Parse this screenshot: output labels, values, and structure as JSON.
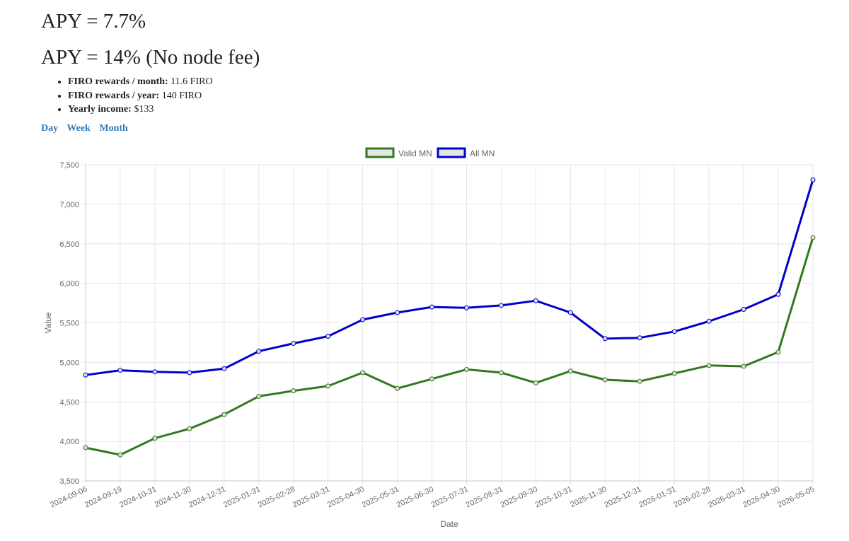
{
  "header": {
    "apy_primary": "APY = 7.7%",
    "apy_no_fee": "APY = 14% (No node fee)"
  },
  "stats": [
    {
      "label": "FIRO rewards / month:",
      "value": "11.6 FIRO"
    },
    {
      "label": "FIRO rewards / year:",
      "value": "140 FIRO"
    },
    {
      "label": "Yearly income:",
      "value": "$133"
    }
  ],
  "ranges": [
    "Day",
    "Week",
    "Month"
  ],
  "chart_data": {
    "type": "line",
    "xlabel": "Date",
    "ylabel": "Value",
    "ylim": [
      3500,
      7500
    ],
    "yticks": [
      3500,
      4000,
      4500,
      5000,
      5500,
      6000,
      6500,
      7000,
      7500
    ],
    "grid": true,
    "legend_position": "top-center",
    "x": [
      "2024-09-06",
      "2024-09-19",
      "2024-10-31",
      "2024-11-30",
      "2024-12-31",
      "2025-01-31",
      "2025-02-28",
      "2025-03-31",
      "2025-04-30",
      "2025-05-31",
      "2025-06-30",
      "2025-07-31",
      "2025-08-31",
      "2025-09-30",
      "2025-10-31",
      "2025-11-30",
      "2025-12-31",
      "2026-01-31",
      "2026-02-28",
      "2026-03-31",
      "2026-04-30",
      "2026-05-05"
    ],
    "series": [
      {
        "name": "Valid MN",
        "color": "#33781f",
        "values": [
          3920,
          3830,
          4040,
          4160,
          4340,
          4570,
          4640,
          4700,
          4870,
          4670,
          4790,
          4910,
          4870,
          4740,
          4890,
          4780,
          4760,
          4860,
          4960,
          4950,
          5130,
          6580
        ]
      },
      {
        "name": "All MN",
        "color": "#0000cc",
        "values": [
          4840,
          4900,
          4880,
          4870,
          4920,
          5140,
          5240,
          5330,
          5540,
          5630,
          5700,
          5690,
          5720,
          5780,
          5630,
          5300,
          5310,
          5390,
          5520,
          5670,
          5860,
          7310
        ]
      }
    ]
  }
}
